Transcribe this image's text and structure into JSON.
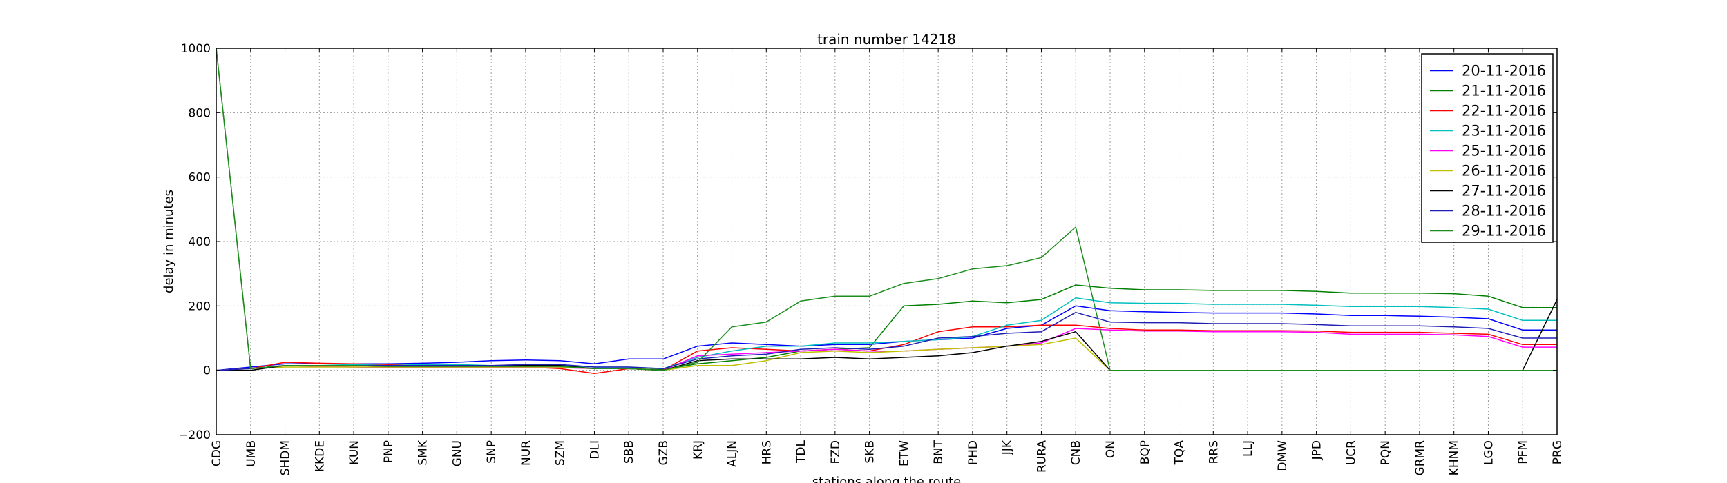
{
  "chart_data": {
    "type": "line",
    "title": "train number 14218",
    "xlabel": "stations along the route",
    "ylabel": "delay in minutes",
    "ylim": [
      -200,
      1000
    ],
    "yticks": [
      "−200",
      "0",
      "200",
      "400",
      "600",
      "800",
      "1000"
    ],
    "ytick_values": [
      -200,
      0,
      200,
      400,
      600,
      800,
      1000
    ],
    "grid": true,
    "legend_position": "top-right",
    "categories": [
      "CDG",
      "UMB",
      "SHDM",
      "KKDE",
      "KUN",
      "PNP",
      "SMK",
      "GNU",
      "SNP",
      "NUR",
      "SZM",
      "DLI",
      "SBB",
      "GZB",
      "KRJ",
      "ALJN",
      "HRS",
      "TDL",
      "FZD",
      "SKB",
      "ETW",
      "BNT",
      "PHD",
      "JJK",
      "RURA",
      "CNB",
      "ON",
      "BQP",
      "TQA",
      "RRS",
      "LLJ",
      "DMW",
      "JPD",
      "UCR",
      "PQN",
      "GRMR",
      "KHNM",
      "LGO",
      "PFM",
      "PRG"
    ],
    "series": [
      {
        "name": "20-11-2016",
        "color": "#0000ff",
        "values": [
          0,
          10,
          20,
          20,
          20,
          20,
          22,
          25,
          30,
          32,
          30,
          20,
          35,
          35,
          75,
          85,
          80,
          75,
          80,
          80,
          90,
          95,
          100,
          130,
          140,
          200,
          185,
          182,
          180,
          178,
          178,
          178,
          175,
          170,
          170,
          168,
          165,
          160,
          125,
          125
        ]
      },
      {
        "name": "21-11-2016",
        "color": "#008000",
        "values": [
          1000,
          5,
          15,
          15,
          15,
          12,
          12,
          12,
          10,
          12,
          10,
          5,
          5,
          2,
          20,
          30,
          40,
          60,
          65,
          70,
          200,
          205,
          215,
          210,
          220,
          265,
          255,
          250,
          250,
          248,
          248,
          248,
          245,
          240,
          240,
          240,
          238,
          230,
          195,
          195
        ]
      },
      {
        "name": "22-11-2016",
        "color": "#ff0000",
        "values": [
          0,
          5,
          25,
          22,
          20,
          18,
          15,
          15,
          12,
          10,
          5,
          -10,
          5,
          0,
          60,
          70,
          65,
          60,
          65,
          60,
          80,
          120,
          135,
          135,
          140,
          140,
          130,
          125,
          125,
          123,
          123,
          123,
          122,
          118,
          118,
          118,
          115,
          112,
          80,
          80
        ]
      },
      {
        "name": "23-11-2016",
        "color": "#00bfbf",
        "values": [
          0,
          5,
          15,
          15,
          18,
          15,
          18,
          18,
          15,
          15,
          15,
          10,
          10,
          5,
          40,
          60,
          75,
          75,
          85,
          85,
          90,
          95,
          105,
          140,
          155,
          225,
          210,
          208,
          208,
          205,
          205,
          205,
          202,
          198,
          198,
          198,
          195,
          190,
          155,
          155
        ]
      },
      {
        "name": "25-11-2016",
        "color": "#ff00ff",
        "values": [
          0,
          5,
          15,
          12,
          10,
          8,
          8,
          8,
          8,
          8,
          8,
          5,
          5,
          0,
          45,
          50,
          55,
          60,
          65,
          60,
          60,
          65,
          70,
          75,
          85,
          130,
          125,
          122,
          122,
          120,
          120,
          120,
          118,
          112,
          112,
          112,
          110,
          105,
          72,
          72
        ]
      },
      {
        "name": "26-11-2016",
        "color": "#bfbf00",
        "values": [
          0,
          5,
          10,
          10,
          10,
          10,
          10,
          10,
          10,
          10,
          10,
          5,
          5,
          0,
          15,
          15,
          30,
          55,
          60,
          55,
          60,
          65,
          70,
          75,
          80,
          100,
          0,
          0,
          0,
          0,
          0,
          0,
          0,
          0,
          0,
          0,
          0,
          0,
          0,
          0
        ]
      },
      {
        "name": "27-11-2016",
        "color": "#000000",
        "values": [
          0,
          0,
          15,
          15,
          15,
          15,
          15,
          15,
          15,
          15,
          15,
          5,
          5,
          0,
          30,
          35,
          35,
          35,
          40,
          35,
          40,
          45,
          55,
          75,
          90,
          120,
          0,
          0,
          0,
          0,
          0,
          0,
          0,
          0,
          0,
          0,
          0,
          0,
          0,
          220
        ]
      },
      {
        "name": "28-11-2016",
        "color": "#1e1eb4",
        "values": [
          0,
          5,
          15,
          15,
          15,
          15,
          15,
          15,
          15,
          18,
          18,
          10,
          10,
          5,
          35,
          45,
          50,
          65,
          70,
          65,
          75,
          100,
          105,
          115,
          120,
          180,
          150,
          148,
          148,
          145,
          145,
          145,
          142,
          138,
          138,
          138,
          135,
          130,
          100,
          100
        ]
      },
      {
        "name": "29-11-2016",
        "color": "#1e8c1e",
        "values": [
          1000,
          5,
          15,
          15,
          15,
          12,
          12,
          12,
          12,
          12,
          12,
          5,
          5,
          0,
          25,
          135,
          150,
          215,
          230,
          230,
          270,
          285,
          315,
          325,
          350,
          445,
          0,
          0,
          0,
          0,
          0,
          0,
          0,
          0,
          0,
          0,
          0,
          0,
          0,
          0
        ]
      }
    ]
  }
}
